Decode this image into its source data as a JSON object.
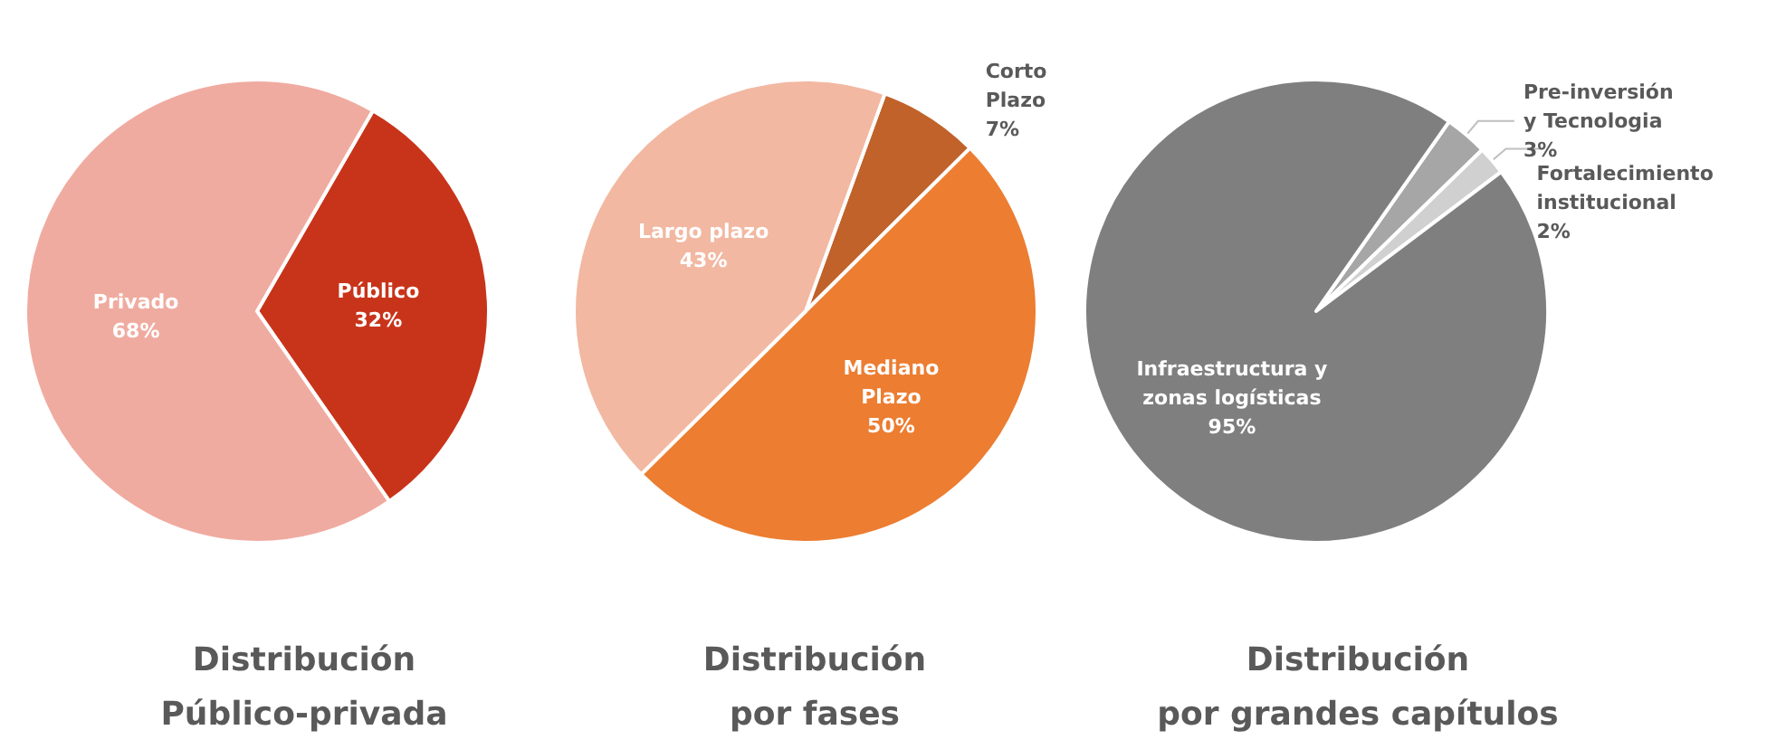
{
  "chart_data": [
    {
      "type": "pie",
      "title": "Distribución\nPúblico-privada",
      "categories": [
        "Público",
        "Privado"
      ],
      "values": [
        32,
        68
      ],
      "colors": [
        "#c8341a",
        "#f0aba0"
      ],
      "value_labels": [
        "32%",
        "68%"
      ]
    },
    {
      "type": "pie",
      "title": "Distribución\npor fases",
      "categories": [
        "Corto\nPlazo",
        "Mediano\nPlazo",
        "Largo plazo"
      ],
      "values": [
        7,
        50,
        43
      ],
      "colors": [
        "#c0622a",
        "#ec7d31",
        "#f2b8a2"
      ],
      "value_labels": [
        "7%",
        "50%",
        "43%"
      ]
    },
    {
      "type": "pie",
      "title": "Distribución\npor grandes capítulos",
      "categories": [
        "Pre-inversión\ny Tecnologia",
        "Fortalecimiento\ninstitucional",
        "Infraestructura y\nzonas logísticas"
      ],
      "values": [
        3,
        2,
        95
      ],
      "colors": [
        "#a6a6a6",
        "#d0d0d0",
        "#7f7f7f"
      ],
      "value_labels": [
        "3%",
        "2%",
        "95%"
      ]
    }
  ]
}
